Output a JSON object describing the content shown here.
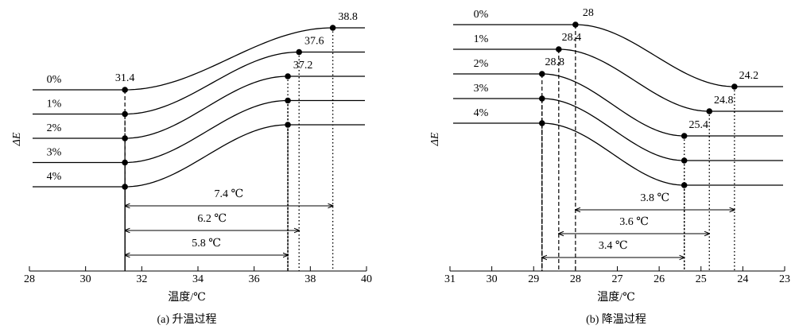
{
  "chart_data": [
    {
      "type": "transition",
      "caption": "(a) 升温过程",
      "x_label": "温度/℃",
      "y_label": "ΔE",
      "xlim": [
        28,
        40
      ],
      "xticks": [
        28,
        30,
        32,
        34,
        36,
        38,
        40
      ],
      "series": [
        {
          "name": "0%",
          "values": [
            31.4,
            38.8
          ]
        },
        {
          "name": "1%",
          "values": [
            31.4,
            37.6
          ]
        },
        {
          "name": "2%",
          "values": [
            31.4,
            37.2
          ]
        },
        {
          "name": "3%",
          "values": [
            31.4,
            37.2
          ]
        },
        {
          "name": "4%",
          "values": [
            31.4,
            37.2
          ]
        }
      ],
      "annotations": [
        "7.4 ℃",
        "6.2 ℃",
        "5.8 ℃"
      ],
      "color": "#000000"
    },
    {
      "type": "transition",
      "caption": "(b) 降温过程",
      "x_label": "温度/℃",
      "y_label": "ΔE",
      "xlim": [
        31,
        23
      ],
      "xticks": [
        31,
        30,
        29,
        28,
        27,
        26,
        25,
        24,
        23
      ],
      "series": [
        {
          "name": "0%",
          "values": [
            28,
            24.2
          ]
        },
        {
          "name": "1%",
          "values": [
            28.4,
            24.8
          ]
        },
        {
          "name": "2%",
          "values": [
            28.8,
            25.4
          ]
        },
        {
          "name": "3%",
          "values": [
            28.8,
            25.4
          ]
        },
        {
          "name": "4%",
          "values": [
            28.8,
            25.4
          ]
        }
      ],
      "annotations": [
        "3.8 ℃",
        "3.6 ℃",
        "3.4 ℃"
      ],
      "color": "#000000"
    }
  ]
}
